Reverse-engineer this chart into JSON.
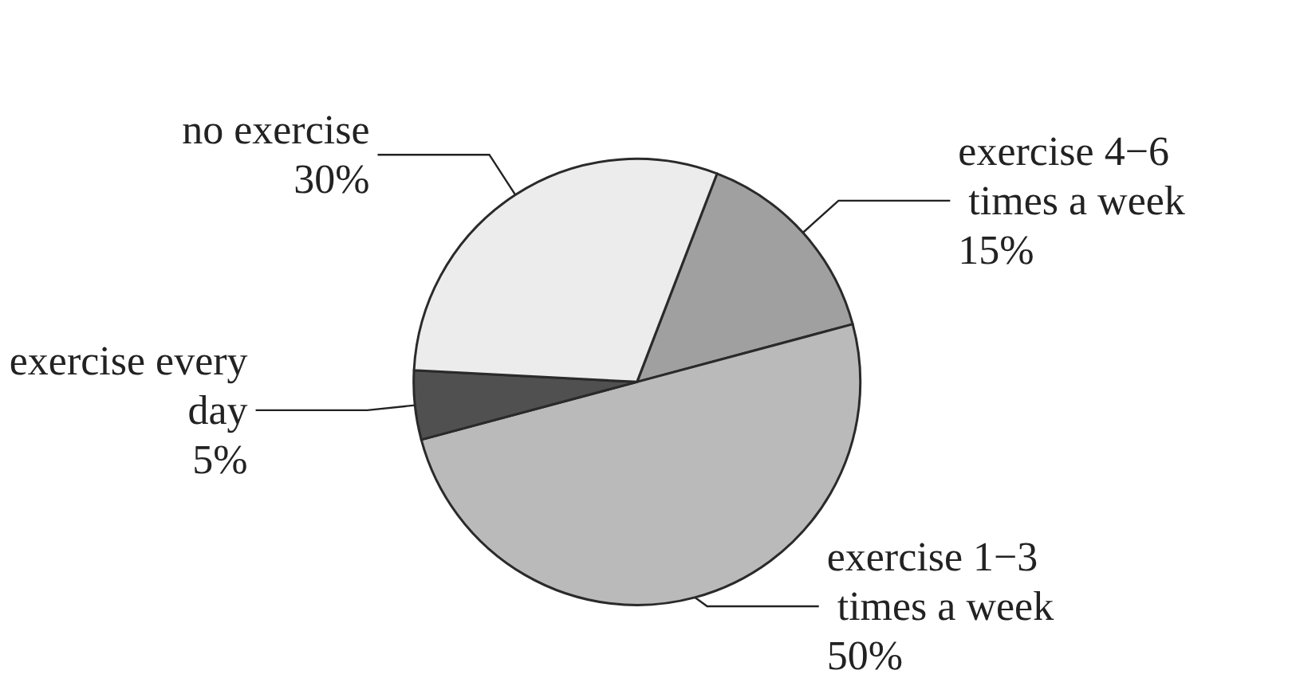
{
  "chart_data": {
    "type": "pie",
    "categories": [
      "exercise 4−6 times a week",
      "exercise 1−3 times a week",
      "exercise every day",
      "no exercise"
    ],
    "values": [
      15,
      50,
      5,
      30
    ],
    "value_labels": [
      "15%",
      "50%",
      "5%",
      "30%"
    ],
    "colors": [
      "#a0a0a0",
      "#bababa",
      "#505050",
      "#ececec"
    ],
    "legend": false
  }
}
